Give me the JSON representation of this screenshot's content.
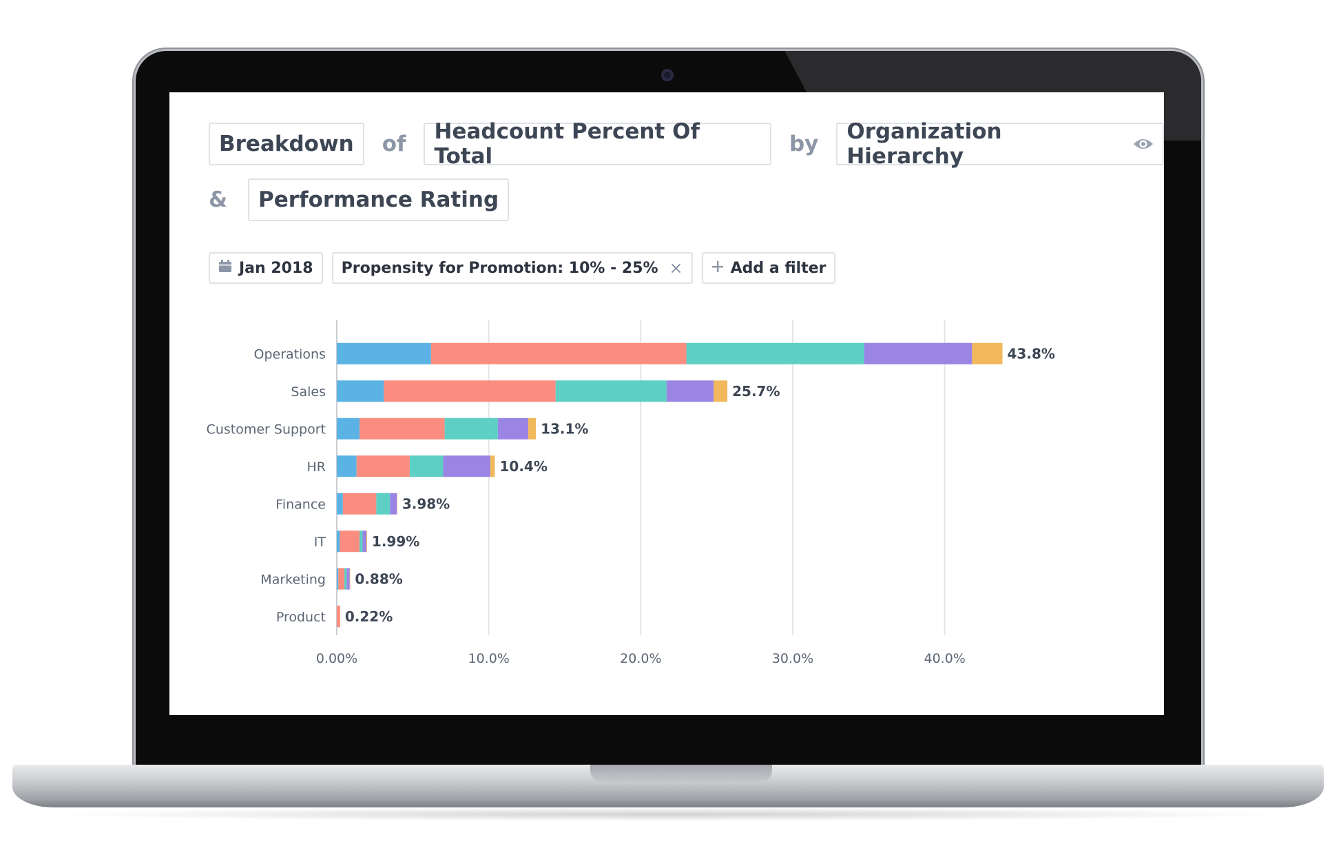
{
  "query": {
    "metric_type": "Breakdown",
    "connector_of": "of",
    "metric": "Headcount Percent Of Total",
    "connector_by": "by",
    "dimension_1": "Organization Hierarchy",
    "connector_and": "&",
    "dimension_2": "Performance Rating"
  },
  "filters": {
    "date": "Jan 2018",
    "active_filter": "Propensity for Promotion: 10% - 25%",
    "remove_symbol": "×",
    "add_filter": "Add a filter"
  },
  "colors": {
    "blue": "#5ab3e4",
    "salmon": "#fa8d7f",
    "teal": "#5dcfc5",
    "purple": "#9a85e4",
    "yellow": "#f1b95c",
    "grid": "#e3e5e8",
    "axis": "#c9ccd1",
    "label": "#5b6573",
    "value_label": "#3d4654"
  },
  "chart_data": {
    "type": "bar",
    "orientation": "horizontal",
    "stacked": true,
    "categories": [
      "Operations",
      "Sales",
      "Customer Support",
      "HR",
      "Finance",
      "IT",
      "Marketing",
      "Product"
    ],
    "totals_labels": [
      "43.8%",
      "25.7%",
      "13.1%",
      "10.4%",
      "3.98%",
      "1.99%",
      "0.88%",
      "0.22%"
    ],
    "series": [
      {
        "color": "blue",
        "values": [
          6.2,
          3.1,
          1.5,
          1.3,
          0.4,
          0.2,
          0.1,
          0.0
        ]
      },
      {
        "color": "salmon",
        "values": [
          16.8,
          11.3,
          5.6,
          3.5,
          2.2,
          1.3,
          0.4,
          0.22
        ]
      },
      {
        "color": "teal",
        "values": [
          11.7,
          7.3,
          3.5,
          2.2,
          0.9,
          0.2,
          0.15,
          0.0
        ]
      },
      {
        "color": "purple",
        "values": [
          7.1,
          3.1,
          2.0,
          3.1,
          0.45,
          0.25,
          0.2,
          0.0
        ]
      },
      {
        "color": "yellow",
        "values": [
          2.0,
          0.9,
          0.5,
          0.3,
          0.03,
          0.04,
          0.03,
          0.0
        ]
      }
    ],
    "xaxis": {
      "min": 0,
      "max": 45,
      "ticks": [
        0,
        10,
        20,
        30,
        40
      ],
      "tick_labels": [
        "0.00%",
        "10.0%",
        "20.0%",
        "30.0%",
        "40.0%"
      ]
    },
    "grid": true,
    "legend": "none"
  }
}
